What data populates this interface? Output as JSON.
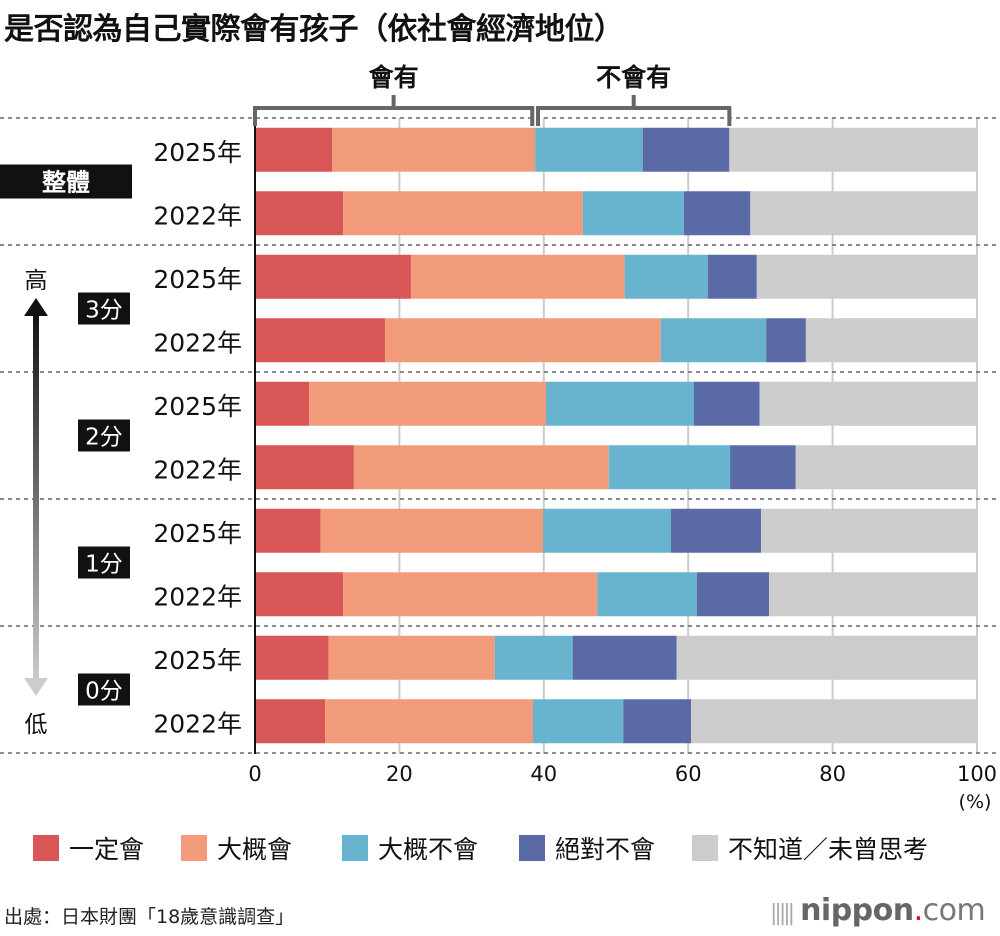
{
  "title": "是否認為自己實際會有孩子（依社會經濟地位）",
  "chart_data": {
    "type": "bar",
    "orientation": "horizontal",
    "stacked": true,
    "xlim": [
      0,
      100
    ],
    "xticks": [
      "0",
      "20",
      "40",
      "60",
      "80",
      "100"
    ],
    "xunit": "(%)",
    "grid": true,
    "legend_position": "bottom",
    "bracket_labels": [
      "會有",
      "不會有"
    ],
    "axis_high_label": "高",
    "axis_low_label": "低",
    "groups": [
      {
        "label": "整體",
        "rows": [
          {
            "year": "2025年",
            "values": [
              10.7,
              28.1,
              14.9,
              12.0,
              34.3
            ]
          },
          {
            "year": "2022年",
            "values": [
              12.2,
              33.2,
              14.0,
              9.2,
              31.4
            ]
          }
        ]
      },
      {
        "label": "3分",
        "rows": [
          {
            "year": "2025年",
            "values": [
              21.6,
              29.6,
              11.5,
              6.8,
              30.5
            ]
          },
          {
            "year": "2022年",
            "values": [
              18.0,
              38.2,
              14.6,
              5.5,
              23.7
            ]
          }
        ]
      },
      {
        "label": "2分",
        "rows": [
          {
            "year": "2025年",
            "values": [
              7.5,
              32.8,
              20.5,
              9.1,
              30.1
            ]
          },
          {
            "year": "2022年",
            "values": [
              13.7,
              35.3,
              16.8,
              9.1,
              25.1
            ]
          }
        ]
      },
      {
        "label": "1分",
        "rows": [
          {
            "year": "2025年",
            "values": [
              9.1,
              30.8,
              17.7,
              12.5,
              29.9
            ]
          },
          {
            "year": "2022年",
            "values": [
              12.2,
              35.2,
              13.8,
              10.0,
              28.8
            ]
          }
        ]
      },
      {
        "label": "0分",
        "rows": [
          {
            "year": "2025年",
            "values": [
              10.2,
              23.0,
              10.8,
              14.4,
              41.6
            ]
          },
          {
            "year": "2022年",
            "values": [
              9.7,
              28.8,
              12.5,
              9.4,
              39.6
            ]
          }
        ]
      }
    ],
    "series": [
      {
        "name": "一定會",
        "color": "#d95656"
      },
      {
        "name": "大概會",
        "color": "#f29b7a"
      },
      {
        "name": "大概不會",
        "color": "#68b3ce"
      },
      {
        "name": "絕對不會",
        "color": "#5a6aa6"
      },
      {
        "name": "不知道／未曾思考",
        "color": "#cccccc"
      }
    ]
  },
  "source": "出處：日本財團「18歲意識調查」",
  "logo": {
    "main": "nippon",
    "dot": ".",
    "suffix": "com"
  }
}
